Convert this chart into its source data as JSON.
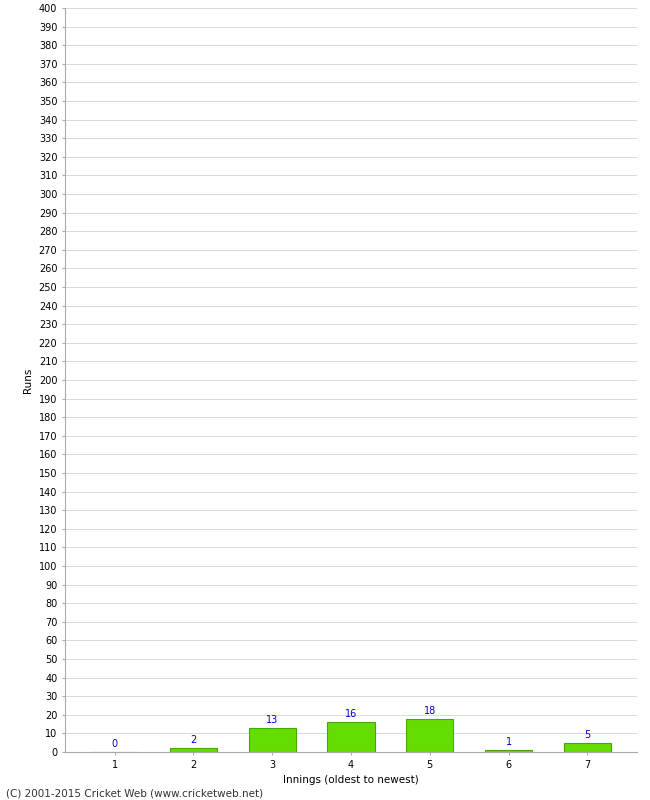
{
  "categories": [
    1,
    2,
    3,
    4,
    5,
    6,
    7
  ],
  "values": [
    0,
    2,
    13,
    16,
    18,
    1,
    5
  ],
  "bar_color": "#66dd00",
  "bar_edge_color": "#44aa00",
  "xlabel": "Innings (oldest to newest)",
  "ylabel": "Runs",
  "ylim": [
    0,
    400
  ],
  "ytick_step": 10,
  "label_color": "#0000cc",
  "grid_color": "#cccccc",
  "background_color": "#ffffff",
  "footer": "(C) 2001-2015 Cricket Web (www.cricketweb.net)",
  "label_fontsize": 7,
  "footer_fontsize": 7.5,
  "axis_fontsize": 7,
  "xlabel_fontsize": 7.5,
  "ylabel_fontsize": 7.5
}
